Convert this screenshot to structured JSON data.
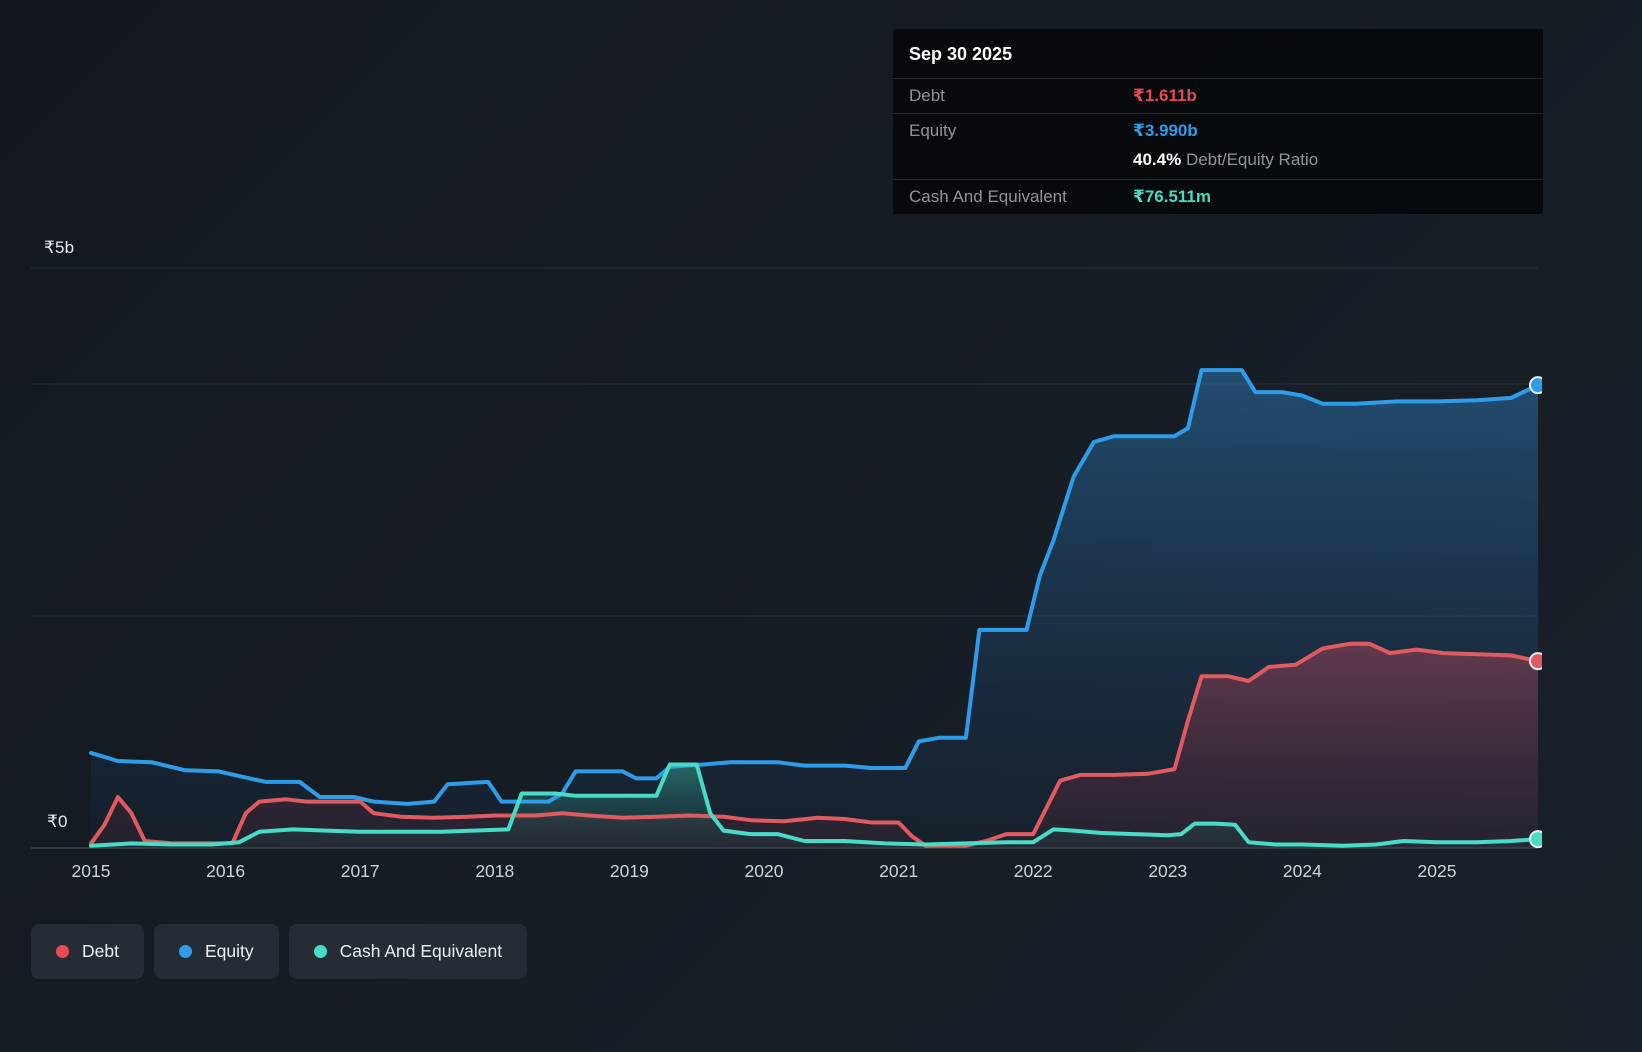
{
  "palette": {
    "debt": "#e64c51",
    "equity": "#2e9de9",
    "cash": "#47dcc5"
  },
  "tooltip": {
    "date": "Sep 30 2025",
    "debt_label": "Debt",
    "debt_value": "₹1.611b",
    "equity_label": "Equity",
    "equity_value": "₹3.990b",
    "ratio_value": "40.4%",
    "ratio_label": "Debt/Equity Ratio",
    "cash_label": "Cash And Equivalent",
    "cash_value": "₹76.511m"
  },
  "legend": {
    "debt": "Debt",
    "equity": "Equity",
    "cash": "Cash And Equivalent"
  },
  "axis": {
    "y_top": "₹5b",
    "y_zero": "₹0",
    "x_labels": [
      "2015",
      "2016",
      "2017",
      "2018",
      "2019",
      "2020",
      "2021",
      "2022",
      "2023",
      "2024",
      "2025"
    ]
  },
  "chart_data": {
    "type": "area",
    "title": "Debt to Equity history",
    "x_range": [
      2015,
      2025.75
    ],
    "ylim": [
      0,
      5
    ],
    "y_unit": "₹ billions",
    "grid_values": [
      5,
      4,
      2,
      0
    ],
    "legend_position": "bottom-left",
    "latest": {
      "date": "Sep 30 2025",
      "debt": "₹1.611b",
      "equity": "₹3.990b",
      "debt_equity_ratio": "40.4%",
      "cash_and_equivalent": "₹76.511m"
    },
    "series": [
      {
        "key": "equity",
        "name": "Equity",
        "color": "#2e9de9",
        "fill_top": "rgba(46,125,190,0.50)",
        "fill_bottom": "rgba(20,52,84,0.16)",
        "points": [
          [
            2015.0,
            0.82
          ],
          [
            2015.2,
            0.75
          ],
          [
            2015.45,
            0.74
          ],
          [
            2015.7,
            0.67
          ],
          [
            2015.95,
            0.66
          ],
          [
            2016.1,
            0.62
          ],
          [
            2016.3,
            0.57
          ],
          [
            2016.55,
            0.57
          ],
          [
            2016.7,
            0.44
          ],
          [
            2016.95,
            0.44
          ],
          [
            2017.1,
            0.4
          ],
          [
            2017.35,
            0.38
          ],
          [
            2017.55,
            0.4
          ],
          [
            2017.65,
            0.55
          ],
          [
            2017.95,
            0.57
          ],
          [
            2018.05,
            0.4
          ],
          [
            2018.4,
            0.4
          ],
          [
            2018.5,
            0.47
          ],
          [
            2018.6,
            0.66
          ],
          [
            2018.95,
            0.66
          ],
          [
            2019.05,
            0.6
          ],
          [
            2019.2,
            0.6
          ],
          [
            2019.3,
            0.7
          ],
          [
            2019.55,
            0.72
          ],
          [
            2019.75,
            0.74
          ],
          [
            2020.1,
            0.74
          ],
          [
            2020.3,
            0.71
          ],
          [
            2020.6,
            0.71
          ],
          [
            2020.8,
            0.69
          ],
          [
            2021.05,
            0.69
          ],
          [
            2021.15,
            0.92
          ],
          [
            2021.3,
            0.95
          ],
          [
            2021.5,
            0.95
          ],
          [
            2021.6,
            1.88
          ],
          [
            2021.95,
            1.88
          ],
          [
            2022.05,
            2.35
          ],
          [
            2022.15,
            2.65
          ],
          [
            2022.3,
            3.2
          ],
          [
            2022.45,
            3.5
          ],
          [
            2022.6,
            3.55
          ],
          [
            2022.8,
            3.55
          ],
          [
            2023.05,
            3.55
          ],
          [
            2023.15,
            3.62
          ],
          [
            2023.25,
            4.12
          ],
          [
            2023.55,
            4.12
          ],
          [
            2023.65,
            3.93
          ],
          [
            2023.85,
            3.93
          ],
          [
            2024.0,
            3.9
          ],
          [
            2024.15,
            3.83
          ],
          [
            2024.4,
            3.83
          ],
          [
            2024.7,
            3.85
          ],
          [
            2025.0,
            3.85
          ],
          [
            2025.3,
            3.86
          ],
          [
            2025.55,
            3.88
          ],
          [
            2025.75,
            3.99
          ]
        ]
      },
      {
        "key": "debt",
        "name": "Debt",
        "color": "#e05a60",
        "fill_top": "rgba(205,75,95,0.40)",
        "fill_bottom": "rgba(120,40,60,0.14)",
        "points": [
          [
            2015.0,
            0.04
          ],
          [
            2015.1,
            0.2
          ],
          [
            2015.2,
            0.44
          ],
          [
            2015.3,
            0.3
          ],
          [
            2015.4,
            0.06
          ],
          [
            2015.6,
            0.04
          ],
          [
            2016.05,
            0.04
          ],
          [
            2016.15,
            0.3
          ],
          [
            2016.25,
            0.4
          ],
          [
            2016.45,
            0.42
          ],
          [
            2016.6,
            0.4
          ],
          [
            2017.0,
            0.4
          ],
          [
            2017.1,
            0.3
          ],
          [
            2017.3,
            0.27
          ],
          [
            2017.55,
            0.26
          ],
          [
            2017.8,
            0.27
          ],
          [
            2018.0,
            0.28
          ],
          [
            2018.3,
            0.28
          ],
          [
            2018.5,
            0.3
          ],
          [
            2018.7,
            0.28
          ],
          [
            2018.95,
            0.26
          ],
          [
            2019.2,
            0.27
          ],
          [
            2019.45,
            0.28
          ],
          [
            2019.7,
            0.27
          ],
          [
            2019.9,
            0.24
          ],
          [
            2020.15,
            0.23
          ],
          [
            2020.4,
            0.26
          ],
          [
            2020.6,
            0.25
          ],
          [
            2020.8,
            0.22
          ],
          [
            2021.0,
            0.22
          ],
          [
            2021.1,
            0.1
          ],
          [
            2021.2,
            0.02
          ],
          [
            2021.5,
            0.02
          ],
          [
            2021.65,
            0.06
          ],
          [
            2021.8,
            0.12
          ],
          [
            2022.0,
            0.12
          ],
          [
            2022.1,
            0.35
          ],
          [
            2022.2,
            0.58
          ],
          [
            2022.35,
            0.63
          ],
          [
            2022.6,
            0.63
          ],
          [
            2022.85,
            0.64
          ],
          [
            2023.05,
            0.68
          ],
          [
            2023.15,
            1.1
          ],
          [
            2023.25,
            1.48
          ],
          [
            2023.45,
            1.48
          ],
          [
            2023.6,
            1.44
          ],
          [
            2023.75,
            1.56
          ],
          [
            2023.95,
            1.58
          ],
          [
            2024.15,
            1.72
          ],
          [
            2024.35,
            1.76
          ],
          [
            2024.5,
            1.76
          ],
          [
            2024.65,
            1.68
          ],
          [
            2024.85,
            1.71
          ],
          [
            2025.05,
            1.68
          ],
          [
            2025.3,
            1.67
          ],
          [
            2025.55,
            1.66
          ],
          [
            2025.75,
            1.611
          ]
        ]
      },
      {
        "key": "cash",
        "name": "Cash And Equivalent",
        "color": "#47dcc5",
        "fill_top": "rgba(64,200,180,0.42)",
        "fill_bottom": "rgba(28,88,84,0.14)",
        "points": [
          [
            2015.0,
            0.02
          ],
          [
            2015.3,
            0.04
          ],
          [
            2015.6,
            0.03
          ],
          [
            2015.9,
            0.03
          ],
          [
            2016.1,
            0.05
          ],
          [
            2016.25,
            0.14
          ],
          [
            2016.5,
            0.16
          ],
          [
            2016.75,
            0.15
          ],
          [
            2017.0,
            0.14
          ],
          [
            2017.6,
            0.14
          ],
          [
            2018.1,
            0.16
          ],
          [
            2018.2,
            0.47
          ],
          [
            2018.45,
            0.47
          ],
          [
            2018.6,
            0.45
          ],
          [
            2019.0,
            0.45
          ],
          [
            2019.2,
            0.45
          ],
          [
            2019.3,
            0.72
          ],
          [
            2019.5,
            0.72
          ],
          [
            2019.6,
            0.3
          ],
          [
            2019.7,
            0.15
          ],
          [
            2019.9,
            0.12
          ],
          [
            2020.1,
            0.12
          ],
          [
            2020.3,
            0.06
          ],
          [
            2020.6,
            0.06
          ],
          [
            2020.9,
            0.04
          ],
          [
            2021.2,
            0.03
          ],
          [
            2021.5,
            0.04
          ],
          [
            2021.8,
            0.05
          ],
          [
            2022.0,
            0.05
          ],
          [
            2022.15,
            0.16
          ],
          [
            2022.3,
            0.15
          ],
          [
            2022.5,
            0.13
          ],
          [
            2022.75,
            0.12
          ],
          [
            2023.0,
            0.11
          ],
          [
            2023.1,
            0.12
          ],
          [
            2023.2,
            0.21
          ],
          [
            2023.35,
            0.21
          ],
          [
            2023.5,
            0.2
          ],
          [
            2023.6,
            0.05
          ],
          [
            2023.8,
            0.03
          ],
          [
            2024.0,
            0.03
          ],
          [
            2024.3,
            0.02
          ],
          [
            2024.55,
            0.03
          ],
          [
            2024.75,
            0.06
          ],
          [
            2025.0,
            0.05
          ],
          [
            2025.3,
            0.05
          ],
          [
            2025.55,
            0.06
          ],
          [
            2025.75,
            0.0765
          ]
        ]
      }
    ]
  }
}
